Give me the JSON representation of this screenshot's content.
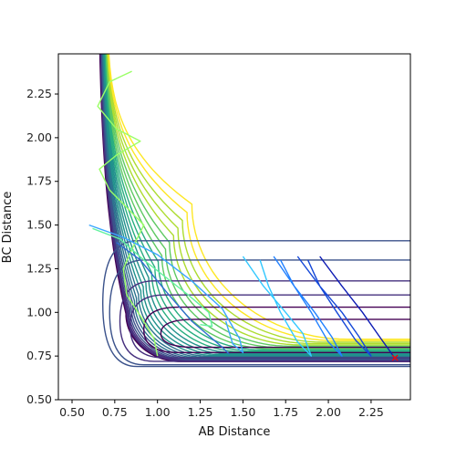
{
  "chart_data": {
    "type": "line",
    "subtype": "contour-with-trajectories",
    "title": "",
    "xlabel": "AB Distance",
    "ylabel": "BC Distance",
    "xlim": [
      0.42,
      2.48
    ],
    "ylim": [
      0.5,
      2.48
    ],
    "xticks": [
      "0.50",
      "0.75",
      "1.00",
      "1.25",
      "1.50",
      "1.75",
      "2.00",
      "2.25"
    ],
    "yticks": [
      "0.50",
      "0.75",
      "1.00",
      "1.25",
      "1.50",
      "1.75",
      "2.00",
      "2.25"
    ],
    "grid": false,
    "colormap": "viridis",
    "contour_levels": [
      {
        "level": 0,
        "color": "#440154"
      },
      {
        "level": 1,
        "color": "#46307e"
      },
      {
        "level": 2,
        "color": "#3b528b"
      },
      {
        "level": 3,
        "color": "#2c728e"
      },
      {
        "level": 4,
        "color": "#21918c"
      },
      {
        "level": 5,
        "color": "#28ae80"
      },
      {
        "level": 6,
        "color": "#5ec962"
      },
      {
        "level": 7,
        "color": "#addc30"
      },
      {
        "level": 8,
        "color": "#fde725"
      }
    ],
    "series": [
      {
        "color": "#9aff66",
        "points": [
          [
            0.85,
            2.38
          ],
          [
            0.72,
            2.32
          ],
          [
            0.65,
            2.18
          ],
          [
            0.76,
            2.05
          ],
          [
            0.9,
            1.98
          ],
          [
            0.76,
            1.9
          ],
          [
            0.66,
            1.82
          ],
          [
            0.72,
            1.7
          ],
          [
            0.82,
            1.6
          ],
          [
            0.92,
            1.5
          ],
          [
            0.86,
            1.38
          ],
          [
            0.8,
            1.25
          ],
          [
            0.82,
            1.1
          ],
          [
            0.9,
            0.98
          ],
          [
            0.98,
            0.85
          ],
          [
            1.0,
            0.75
          ]
        ]
      },
      {
        "color": "#62f2a0",
        "points": [
          [
            0.62,
            1.48
          ],
          [
            0.78,
            1.42
          ],
          [
            0.92,
            1.3
          ],
          [
            1.05,
            1.2
          ],
          [
            1.18,
            1.1
          ],
          [
            1.3,
            1.0
          ],
          [
            1.32,
            0.92
          ],
          [
            1.25,
            0.93
          ]
        ]
      },
      {
        "color": "#3aa6ff",
        "points": [
          [
            0.6,
            1.5
          ],
          [
            0.8,
            1.43
          ],
          [
            1.0,
            1.33
          ],
          [
            1.2,
            1.18
          ],
          [
            1.38,
            1.02
          ],
          [
            1.48,
            0.85
          ],
          [
            1.5,
            0.77
          ],
          [
            1.44,
            0.82
          ],
          [
            1.4,
            0.95
          ]
        ]
      },
      {
        "color": "#2f6cd0",
        "points": [
          [
            0.76,
            1.4
          ],
          [
            0.9,
            1.3
          ],
          [
            1.05,
            1.12
          ],
          [
            1.2,
            0.95
          ],
          [
            1.38,
            0.8
          ],
          [
            1.42,
            0.76
          ]
        ]
      },
      {
        "color": "#32c8ff",
        "points": [
          [
            1.5,
            1.32
          ],
          [
            1.62,
            1.15
          ],
          [
            1.75,
            1.0
          ],
          [
            1.85,
            0.88
          ],
          [
            1.9,
            0.75
          ],
          [
            1.82,
            0.83
          ],
          [
            1.72,
            1.0
          ],
          [
            1.65,
            1.15
          ],
          [
            1.6,
            1.3
          ]
        ]
      },
      {
        "color": "#2080ff",
        "points": [
          [
            1.68,
            1.32
          ],
          [
            1.8,
            1.15
          ],
          [
            1.92,
            1.0
          ],
          [
            2.02,
            0.86
          ],
          [
            2.08,
            0.75
          ],
          [
            2.0,
            0.83
          ],
          [
            1.9,
            1.0
          ],
          [
            1.8,
            1.15
          ],
          [
            1.72,
            1.3
          ]
        ]
      },
      {
        "color": "#1548d8",
        "points": [
          [
            1.82,
            1.32
          ],
          [
            1.95,
            1.15
          ],
          [
            2.08,
            1.0
          ],
          [
            2.18,
            0.86
          ],
          [
            2.25,
            0.75
          ],
          [
            2.16,
            0.84
          ],
          [
            2.05,
            1.0
          ],
          [
            1.95,
            1.15
          ],
          [
            1.88,
            1.3
          ]
        ]
      },
      {
        "color": "#0d1bb4",
        "points": [
          [
            1.95,
            1.32
          ],
          [
            2.08,
            1.15
          ],
          [
            2.2,
            1.0
          ],
          [
            2.3,
            0.86
          ],
          [
            2.38,
            0.75
          ]
        ]
      }
    ],
    "marker": {
      "x": 2.39,
      "y": 0.74,
      "symbol": "x",
      "color": "#ff0000"
    }
  }
}
